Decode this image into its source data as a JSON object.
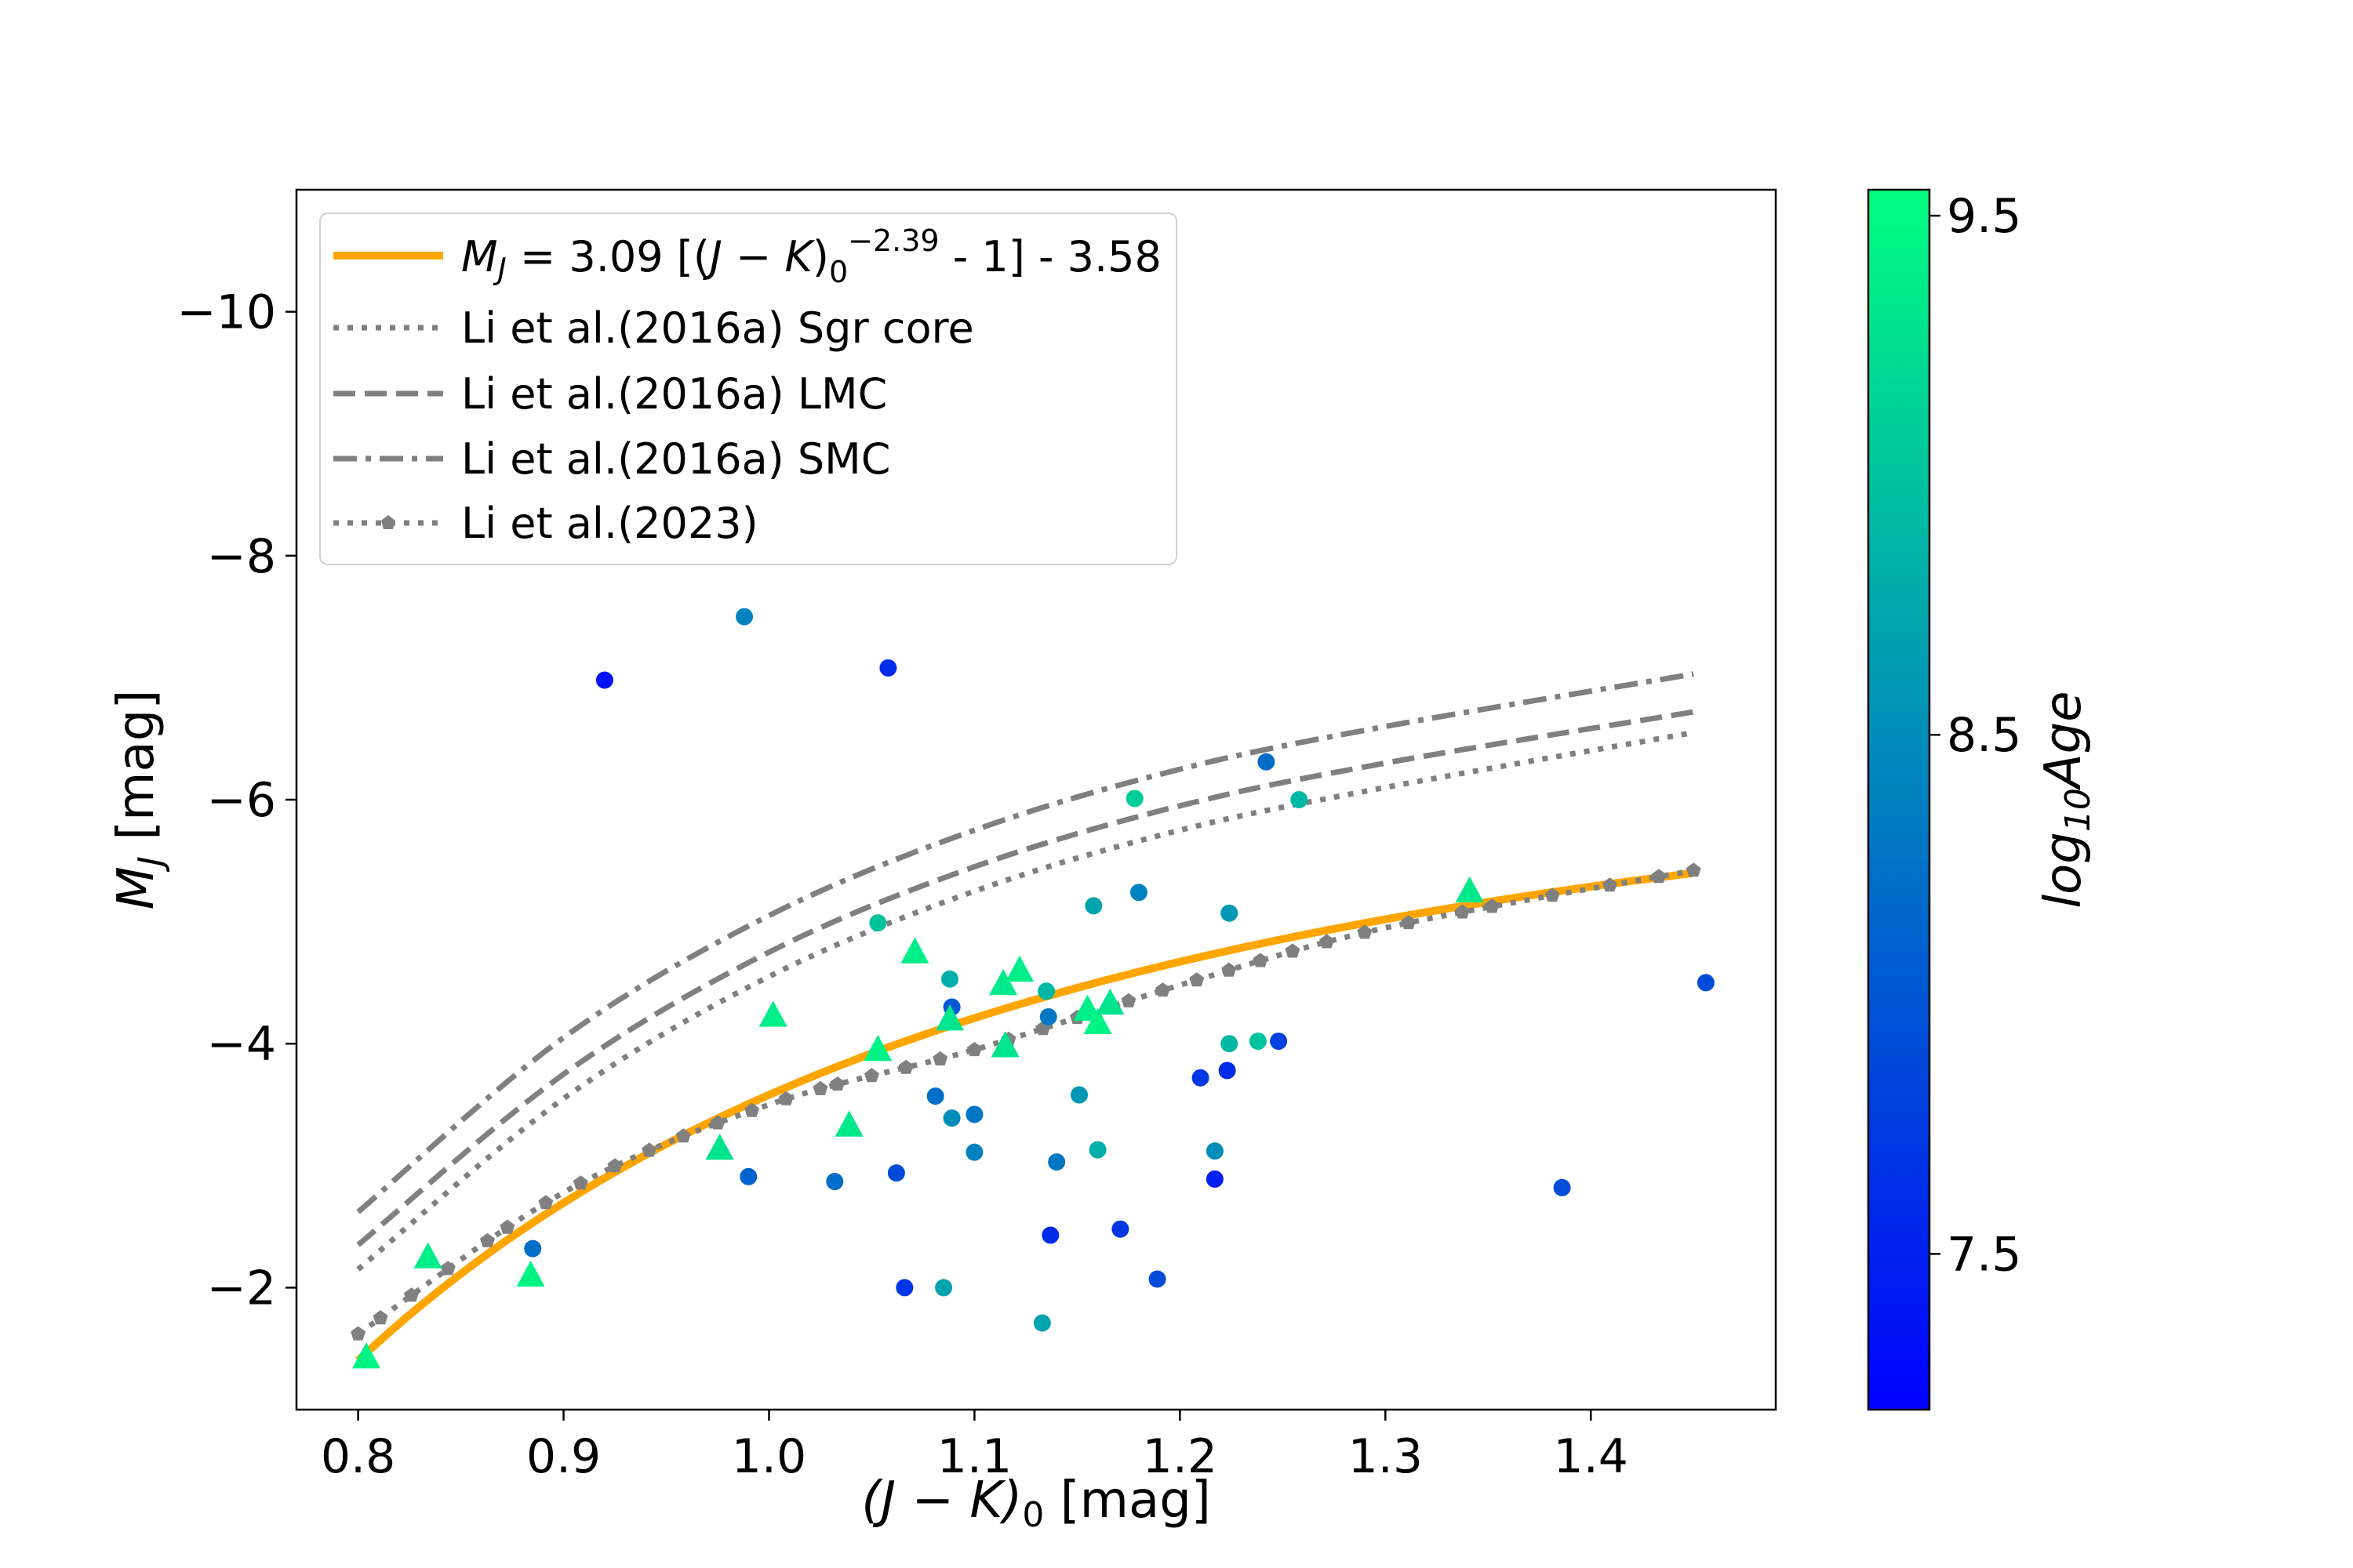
{
  "chart_data": {
    "type": "scatter",
    "xlabel": "(J − K)₀ [mag]",
    "ylabel": "M_J [mag]",
    "xlim": [
      0.77,
      1.49
    ],
    "ylim": [
      -1.0,
      -11.0
    ],
    "y_inverted": true,
    "x_ticks": [
      0.8,
      0.9,
      1.0,
      1.1,
      1.2,
      1.3,
      1.4
    ],
    "x_tick_labels": [
      "0.8",
      "0.9",
      "1.0",
      "1.1",
      "1.2",
      "1.3",
      "1.4"
    ],
    "y_ticks": [
      -2,
      -4,
      -6,
      -8,
      -10
    ],
    "y_tick_labels": [
      "−2",
      "−4",
      "−6",
      "−8",
      "−10"
    ],
    "grid": false,
    "legend_position": "top-left",
    "colorbar": {
      "label": "log10Age",
      "range": [
        7.2,
        9.55
      ],
      "ticks": [
        7.5,
        8.5,
        9.5
      ],
      "tick_labels": [
        "7.5",
        "8.5",
        "9.5"
      ],
      "color_low": "#0000ff",
      "color_high": "#00ff80"
    },
    "curves": [
      {
        "name": "M_J = 3.09 [(J − K)₀^−2.39 − 1] − 3.58",
        "style": "solid",
        "color": "#ffa500",
        "formula": {
          "a": 3.09,
          "p": -2.39,
          "b": -3.58
        },
        "x_range": [
          0.8,
          1.45
        ]
      },
      {
        "name": "Li et al.(2016a) Sgr core",
        "style": "dotted",
        "color": "#808080",
        "x": [
          0.8,
          0.9,
          1.0,
          1.1,
          1.2,
          1.3,
          1.45
        ],
        "y": [
          -2.15,
          -3.55,
          -4.55,
          -5.25,
          -5.75,
          -6.1,
          -6.55
        ]
      },
      {
        "name": "Li et al.(2016a) LMC",
        "style": "dashed",
        "color": "#808080",
        "x": [
          0.8,
          0.9,
          1.0,
          1.1,
          1.2,
          1.3,
          1.45
        ],
        "y": [
          -2.35,
          -3.75,
          -4.75,
          -5.45,
          -5.95,
          -6.3,
          -6.72
        ]
      },
      {
        "name": "Li et al.(2016a) SMC",
        "style": "dashdot",
        "color": "#808080",
        "x": [
          0.8,
          0.9,
          1.0,
          1.1,
          1.2,
          1.3,
          1.45
        ],
        "y": [
          -2.62,
          -4.05,
          -5.05,
          -5.75,
          -6.25,
          -6.6,
          -7.03
        ]
      },
      {
        "name": "Li et al.(2023)",
        "style": "dotted-pentagon",
        "color": "#808080",
        "x": [
          0.8,
          0.9,
          1.0,
          1.1,
          1.2,
          1.3,
          1.45
        ],
        "y": [
          -1.62,
          -2.78,
          -3.5,
          -3.95,
          -4.48,
          -4.95,
          -5.42
        ]
      }
    ],
    "circle_points": [
      {
        "x": 0.92,
        "y": -6.98,
        "age": 7.35
      },
      {
        "x": 0.988,
        "y": -7.5,
        "age": 8.4
      },
      {
        "x": 1.058,
        "y": -7.08,
        "age": 7.6
      },
      {
        "x": 1.178,
        "y": -6.01,
        "age": 9.1
      },
      {
        "x": 1.242,
        "y": -6.31,
        "age": 8.2
      },
      {
        "x": 1.258,
        "y": -6.0,
        "age": 8.9
      },
      {
        "x": 1.053,
        "y": -4.99,
        "age": 9.0
      },
      {
        "x": 1.158,
        "y": -5.13,
        "age": 8.7
      },
      {
        "x": 1.18,
        "y": -5.24,
        "age": 8.4
      },
      {
        "x": 1.224,
        "y": -5.07,
        "age": 8.6
      },
      {
        "x": 1.088,
        "y": -4.53,
        "age": 8.8
      },
      {
        "x": 1.089,
        "y": -4.3,
        "age": 8.0
      },
      {
        "x": 1.135,
        "y": -4.43,
        "age": 8.9
      },
      {
        "x": 1.136,
        "y": -4.22,
        "age": 8.3
      },
      {
        "x": 1.224,
        "y": -4.0,
        "age": 8.9
      },
      {
        "x": 1.238,
        "y": -4.02,
        "age": 9.0
      },
      {
        "x": 1.248,
        "y": -4.02,
        "age": 7.8
      },
      {
        "x": 1.21,
        "y": -3.72,
        "age": 7.7
      },
      {
        "x": 1.223,
        "y": -3.78,
        "age": 7.6
      },
      {
        "x": 1.081,
        "y": -3.57,
        "age": 8.2
      },
      {
        "x": 1.089,
        "y": -3.39,
        "age": 8.5
      },
      {
        "x": 1.1,
        "y": -3.42,
        "age": 8.3
      },
      {
        "x": 1.151,
        "y": -3.58,
        "age": 8.6
      },
      {
        "x": 1.1,
        "y": -3.11,
        "age": 8.4
      },
      {
        "x": 1.16,
        "y": -3.13,
        "age": 8.8
      },
      {
        "x": 1.217,
        "y": -3.12,
        "age": 8.5
      },
      {
        "x": 0.99,
        "y": -2.91,
        "age": 8.1
      },
      {
        "x": 1.032,
        "y": -2.87,
        "age": 8.2
      },
      {
        "x": 1.062,
        "y": -2.94,
        "age": 7.9
      },
      {
        "x": 1.14,
        "y": -3.03,
        "age": 8.3
      },
      {
        "x": 1.217,
        "y": -2.89,
        "age": 7.5
      },
      {
        "x": 1.386,
        "y": -2.82,
        "age": 7.9
      },
      {
        "x": 1.137,
        "y": -2.43,
        "age": 7.6
      },
      {
        "x": 1.171,
        "y": -2.48,
        "age": 7.7
      },
      {
        "x": 0.885,
        "y": -2.32,
        "age": 8.2
      },
      {
        "x": 1.066,
        "y": -2.0,
        "age": 7.7
      },
      {
        "x": 1.085,
        "y": -2.0,
        "age": 8.7
      },
      {
        "x": 1.189,
        "y": -2.07,
        "age": 7.9
      },
      {
        "x": 1.133,
        "y": -1.71,
        "age": 8.7
      },
      {
        "x": 1.456,
        "y": -4.5,
        "age": 7.9
      }
    ],
    "triangle_points": [
      {
        "x": 0.804,
        "y": -1.43,
        "age": 9.45
      },
      {
        "x": 0.834,
        "y": -2.25,
        "age": 9.4
      },
      {
        "x": 0.884,
        "y": -2.1,
        "age": 9.45
      },
      {
        "x": 0.976,
        "y": -3.14,
        "age": 9.3
      },
      {
        "x": 1.002,
        "y": -4.23,
        "age": 9.4
      },
      {
        "x": 1.039,
        "y": -3.33,
        "age": 9.35
      },
      {
        "x": 1.053,
        "y": -3.95,
        "age": 9.45
      },
      {
        "x": 1.071,
        "y": -4.75,
        "age": 9.4
      },
      {
        "x": 1.088,
        "y": -4.2,
        "age": 9.3
      },
      {
        "x": 1.114,
        "y": -4.49,
        "age": 9.35
      },
      {
        "x": 1.122,
        "y": -4.6,
        "age": 9.4
      },
      {
        "x": 1.115,
        "y": -3.98,
        "age": 9.3
      },
      {
        "x": 1.155,
        "y": -4.28,
        "age": 9.4
      },
      {
        "x": 1.16,
        "y": -4.17,
        "age": 9.45
      },
      {
        "x": 1.166,
        "y": -4.33,
        "age": 9.3
      },
      {
        "x": 1.341,
        "y": -5.25,
        "age": 9.35
      }
    ]
  }
}
